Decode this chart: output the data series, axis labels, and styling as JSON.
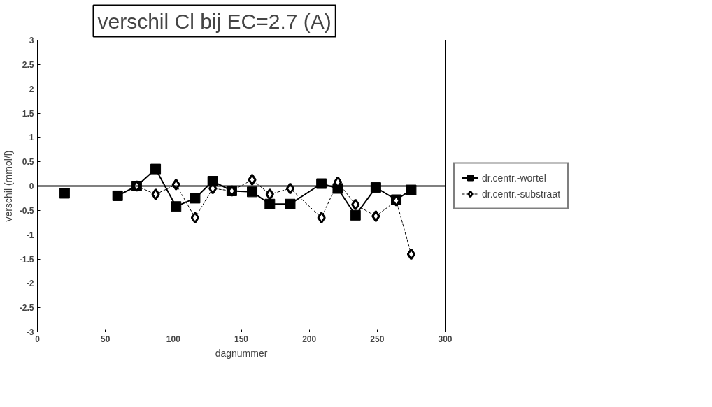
{
  "chart_data": {
    "type": "line",
    "title": "verschil Cl bij EC=2.7 (A)",
    "xlabel": "dagnummer",
    "ylabel": "verschil (mmol/l)",
    "xlim": [
      0,
      300
    ],
    "xticks": [
      0,
      50,
      100,
      150,
      200,
      250,
      300
    ],
    "ylim": [
      -3,
      3
    ],
    "yticks": [
      -3,
      -2.5,
      -2,
      -1.5,
      -1,
      -0.5,
      0,
      0.5,
      1,
      1.5,
      2,
      2.5,
      3
    ],
    "ref_lines": [
      {
        "axis": "y",
        "value": 0,
        "color": "#000000"
      }
    ],
    "grid": false,
    "legend": "right",
    "series": [
      {
        "name": "dr.centr.-wortel",
        "color": "#000000",
        "marker": "square",
        "line_style": "solid",
        "x": [
          20,
          40,
          59,
          73,
          87,
          102,
          116,
          129,
          143,
          158,
          171,
          186,
          209,
          221,
          234,
          249,
          264,
          275
        ],
        "values": [
          -0.15,
          null,
          -0.2,
          0,
          0.35,
          -0.42,
          -0.25,
          0.1,
          -0.1,
          -0.12,
          -0.37,
          -0.37,
          0.05,
          -0.05,
          -0.6,
          -0.03,
          -0.28,
          -0.08
        ]
      },
      {
        "name": "dr.centr.-substraat",
        "color": "#000000",
        "marker": "diamond",
        "line_style": "dashed",
        "x": [
          73,
          87,
          102,
          116,
          129,
          143,
          158,
          171,
          186,
          209,
          221,
          234,
          249,
          264,
          275
        ],
        "values": [
          0,
          -0.17,
          0.03,
          -0.65,
          -0.05,
          -0.1,
          0.13,
          -0.17,
          -0.05,
          -0.65,
          0.08,
          -0.38,
          -0.62,
          -0.3,
          -1.4
        ]
      }
    ]
  }
}
